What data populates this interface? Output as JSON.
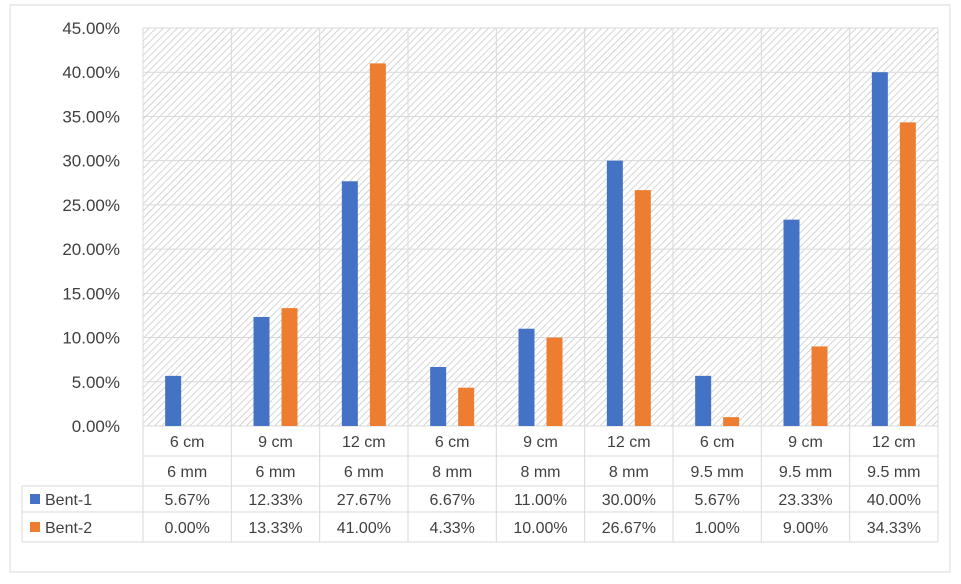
{
  "chart_data": {
    "type": "bar",
    "title": "",
    "xlabel": "",
    "ylabel": "",
    "ylim": [
      0,
      45
    ],
    "y_ticks": [
      "0.00%",
      "5.00%",
      "10.00%",
      "15.00%",
      "20.00%",
      "25.00%",
      "30.00%",
      "35.00%",
      "40.00%",
      "45.00%"
    ],
    "categories": [
      {
        "size": "6 cm",
        "dia": "6 mm"
      },
      {
        "size": "9 cm",
        "dia": "6 mm"
      },
      {
        "size": "12 cm",
        "dia": "6 mm"
      },
      {
        "size": "6 cm",
        "dia": "8 mm"
      },
      {
        "size": "9 cm",
        "dia": "8 mm"
      },
      {
        "size": "12 cm",
        "dia": "8 mm"
      },
      {
        "size": "6 cm",
        "dia": "9.5 mm"
      },
      {
        "size": "9 cm",
        "dia": "9.5 mm"
      },
      {
        "size": "12 cm",
        "dia": "9.5 mm"
      }
    ],
    "series": [
      {
        "name": "Bent-1",
        "color": "#4472C4",
        "values": [
          5.67,
          12.33,
          27.67,
          6.67,
          11.0,
          30.0,
          5.67,
          23.33,
          40.0
        ],
        "labels": [
          "5.67%",
          "12.33%",
          "27.67%",
          "6.67%",
          "11.00%",
          "30.00%",
          "5.67%",
          "23.33%",
          "40.00%"
        ]
      },
      {
        "name": "Bent-2",
        "color": "#ED7D31",
        "values": [
          0.0,
          13.33,
          41.0,
          4.33,
          10.0,
          26.67,
          1.0,
          9.0,
          34.33
        ],
        "labels": [
          "0.00%",
          "13.33%",
          "41.00%",
          "4.33%",
          "10.00%",
          "26.67%",
          "1.00%",
          "9.00%",
          "34.33%"
        ]
      }
    ],
    "grid": true,
    "legend": "table-bottom",
    "background": "hatched"
  }
}
